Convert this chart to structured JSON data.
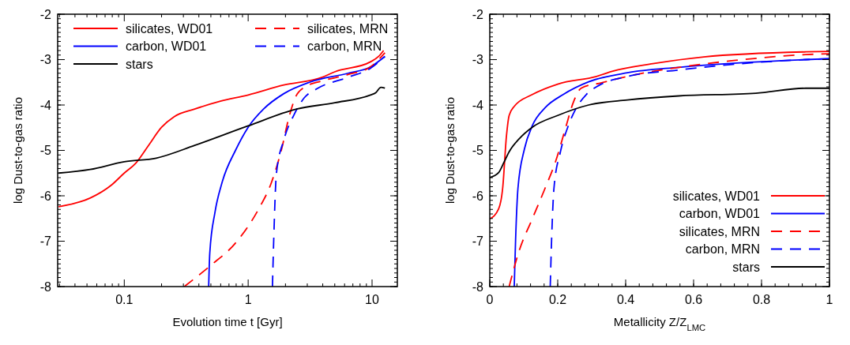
{
  "chart_data": [
    {
      "type": "line",
      "xlabel": "Evolution time t [Gyr]",
      "ylabel": "log Dust-to-gas ratio",
      "log": "x",
      "xlim": [
        0.029,
        16
      ],
      "xticks": [
        0.1,
        1,
        10
      ],
      "ylim": [
        -8,
        -2
      ],
      "yticks": [
        -8,
        -7,
        -6,
        -5,
        -4,
        -3,
        -2
      ],
      "legend": "top left",
      "grid": false,
      "series": [
        {
          "name": "silicates, WD01",
          "color": "#ff0000",
          "line_style": "solid",
          "x": [
            0.0295,
            0.053,
            0.079,
            0.1,
            0.124,
            0.157,
            0.2,
            0.252,
            0.37,
            0.59,
            1,
            1.94,
            3.96,
            5.0,
            9.7,
            11.3,
            12.4
          ],
          "values": [
            -6.24,
            -6.05,
            -5.76,
            -5.5,
            -5.28,
            -4.89,
            -4.49,
            -4.26,
            -4.09,
            -3.92,
            -3.78,
            -3.56,
            -3.39,
            -3.27,
            -3.05,
            -2.93,
            -2.8
          ]
        },
        {
          "name": "carbon, WD01",
          "color": "#0000ff",
          "line_style": "solid",
          "x": [
            0.48,
            0.49,
            0.54,
            0.62,
            0.79,
            1,
            1.33,
            1.94,
            3.12,
            6.4,
            9.7,
            12.7
          ],
          "values": [
            -8,
            -7.26,
            -6.36,
            -5.68,
            -5.0,
            -4.49,
            -4.09,
            -3.75,
            -3.5,
            -3.3,
            -3.16,
            -2.93
          ]
        },
        {
          "name": "silicates, MRN",
          "color": "#ff0000",
          "line_style": "dashed",
          "x": [
            0.305,
            0.49,
            0.79,
            1.21,
            1.53,
            1.85,
            2.14,
            2.4,
            2.84,
            3.96,
            6.4,
            9.7,
            12.7
          ],
          "values": [
            -8,
            -7.55,
            -7.04,
            -6.3,
            -5.73,
            -5.0,
            -4.26,
            -3.84,
            -3.61,
            -3.47,
            -3.33,
            -3.16,
            -2.85
          ]
        },
        {
          "name": "carbon, MRN",
          "color": "#0000ff",
          "line_style": "dashed",
          "x": [
            1.57,
            1.61,
            1.69,
            1.94,
            2.35,
            2.84,
            3.6,
            6.4,
            9.7,
            12.7
          ],
          "values": [
            -8,
            -6.92,
            -5.51,
            -4.77,
            -4.21,
            -3.84,
            -3.64,
            -3.39,
            -3.19,
            -2.93
          ]
        },
        {
          "name": "stars",
          "color": "#000000",
          "line_style": "solid",
          "x": [
            0.0295,
            0.053,
            0.1,
            0.181,
            0.37,
            1,
            2.46,
            5.0,
            9.7,
            10.7,
            11.8,
            12.7
          ],
          "values": [
            -5.5,
            -5.42,
            -5.25,
            -5.17,
            -4.89,
            -4.46,
            -4.09,
            -3.95,
            -3.78,
            -3.73,
            -3.61,
            -3.63
          ]
        }
      ]
    },
    {
      "type": "line",
      "xlabel": "Metallicity Z/Z$_{LMC}$",
      "ylabel": "log Dust-to-gas ratio",
      "xlim": [
        0,
        1
      ],
      "xticks": [
        0,
        0.2,
        0.4,
        0.6,
        0.8,
        1
      ],
      "ylim": [
        -8,
        -2
      ],
      "yticks": [
        -8,
        -7,
        -6,
        -5,
        -4,
        -3,
        -2
      ],
      "legend": "bottom right",
      "grid": false,
      "series": [
        {
          "name": "silicates, WD01",
          "color": "#ff0000",
          "line_style": "solid",
          "x": [
            0,
            0.026,
            0.038,
            0.049,
            0.057,
            0.072,
            0.125,
            0.2,
            0.314,
            0.36,
            0.48,
            0.63,
            0.93,
            1.0
          ],
          "values": [
            -6.51,
            -6.29,
            -5.83,
            -4.69,
            -4.23,
            -4.03,
            -3.77,
            -3.54,
            -3.37,
            -3.26,
            -3.09,
            -2.94,
            -2.83,
            -2.82
          ]
        },
        {
          "name": "carbon, WD01",
          "color": "#0000ff",
          "line_style": "solid",
          "x": [
            0.072,
            0.076,
            0.083,
            0.102,
            0.125,
            0.163,
            0.216,
            0.291,
            0.405,
            0.556,
            0.93,
            1.0
          ],
          "values": [
            -8,
            -6.97,
            -5.83,
            -4.97,
            -4.46,
            -4.06,
            -3.77,
            -3.49,
            -3.29,
            -3.17,
            -3.0,
            -2.98
          ]
        },
        {
          "name": "silicates, MRN",
          "color": "#ff0000",
          "line_style": "dashed",
          "x": [
            0.057,
            0.087,
            0.125,
            0.163,
            0.193,
            0.223,
            0.246,
            0.269,
            0.329,
            0.443,
            0.556,
            0.707,
            0.93,
            1.0
          ],
          "values": [
            -8,
            -7.2,
            -6.51,
            -5.83,
            -5.26,
            -4.51,
            -3.94,
            -3.63,
            -3.51,
            -3.31,
            -3.17,
            -3.03,
            -2.89,
            -2.87
          ]
        },
        {
          "name": "carbon, MRN",
          "color": "#0000ff",
          "line_style": "dashed",
          "x": [
            0.178,
            0.182,
            0.189,
            0.208,
            0.231,
            0.253,
            0.284,
            0.314,
            0.405,
            0.556,
            0.707,
            0.93,
            1.0
          ],
          "values": [
            -8,
            -6.97,
            -5.83,
            -5.03,
            -4.46,
            -4.09,
            -3.77,
            -3.6,
            -3.37,
            -3.23,
            -3.11,
            -3.0,
            -2.98
          ]
        },
        {
          "name": "stars",
          "color": "#000000",
          "line_style": "solid",
          "x": [
            0,
            0.026,
            0.042,
            0.057,
            0.087,
            0.125,
            0.2,
            0.291,
            0.405,
            0.556,
            0.783,
            0.93,
            1.0
          ],
          "values": [
            -5.6,
            -5.49,
            -5.26,
            -5.03,
            -4.74,
            -4.49,
            -4.23,
            -4.0,
            -3.89,
            -3.8,
            -3.74,
            -3.63,
            -3.63
          ]
        }
      ]
    }
  ]
}
